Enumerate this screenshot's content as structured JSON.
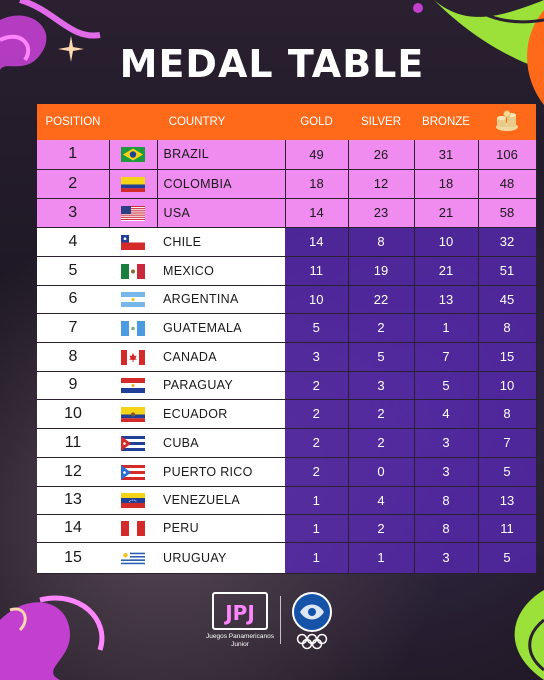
{
  "title": "MEDAL TABLE",
  "headers": {
    "position": "POSITION",
    "country": "COUNTRY",
    "gold": "GOLD",
    "silver": "SILVER",
    "bronze": "BRONZE",
    "total_icon": "medals-stack-icon"
  },
  "rows": [
    {
      "position": "1",
      "country": "BRAZIL",
      "flag": "brazil-flag",
      "gold": "49",
      "silver": "26",
      "bronze": "31",
      "total": "106"
    },
    {
      "position": "2",
      "country": "COLOMBIA",
      "flag": "colombia-flag",
      "gold": "18",
      "silver": "12",
      "bronze": "18",
      "total": "48"
    },
    {
      "position": "3",
      "country": "USA",
      "flag": "usa-flag",
      "gold": "14",
      "silver": "23",
      "bronze": "21",
      "total": "58"
    },
    {
      "position": "4",
      "country": "CHILE",
      "flag": "chile-flag",
      "gold": "14",
      "silver": "8",
      "bronze": "10",
      "total": "32"
    },
    {
      "position": "5",
      "country": "MEXICO",
      "flag": "mexico-flag",
      "gold": "11",
      "silver": "19",
      "bronze": "21",
      "total": "51"
    },
    {
      "position": "6",
      "country": "ARGENTINA",
      "flag": "argentina-flag",
      "gold": "10",
      "silver": "22",
      "bronze": "13",
      "total": "45"
    },
    {
      "position": "7",
      "country": "GUATEMALA",
      "flag": "guatemala-flag",
      "gold": "5",
      "silver": "2",
      "bronze": "1",
      "total": "8"
    },
    {
      "position": "8",
      "country": "CANADA",
      "flag": "canada-flag",
      "gold": "3",
      "silver": "5",
      "bronze": "7",
      "total": "15"
    },
    {
      "position": "9",
      "country": "PARAGUAY",
      "flag": "paraguay-flag",
      "gold": "2",
      "silver": "3",
      "bronze": "5",
      "total": "10"
    },
    {
      "position": "10",
      "country": "ECUADOR",
      "flag": "ecuador-flag",
      "gold": "2",
      "silver": "2",
      "bronze": "4",
      "total": "8"
    },
    {
      "position": "11",
      "country": "CUBA",
      "flag": "cuba-flag",
      "gold": "2",
      "silver": "2",
      "bronze": "3",
      "total": "7"
    },
    {
      "position": "12",
      "country": "PUERTO RICO",
      "flag": "puerto-rico-flag",
      "gold": "2",
      "silver": "0",
      "bronze": "3",
      "total": "5"
    },
    {
      "position": "13",
      "country": "VENEZUELA",
      "flag": "venezuela-flag",
      "gold": "1",
      "silver": "4",
      "bronze": "8",
      "total": "13"
    },
    {
      "position": "14",
      "country": "PERU",
      "flag": "peru-flag",
      "gold": "1",
      "silver": "2",
      "bronze": "8",
      "total": "11"
    },
    {
      "position": "15",
      "country": "URUGUAY",
      "flag": "uruguay-flag",
      "gold": "1",
      "silver": "1",
      "bronze": "3",
      "total": "5"
    }
  ],
  "footer": {
    "logo_mark": "JPJ",
    "logo_caption_line1": "Juegos Panamericanos",
    "logo_caption_line2": "Junior",
    "panam_logo": "panam-sports-logo"
  },
  "colors": {
    "header_orange": "#ff6a1a",
    "top3_pink": "#f08cf0",
    "purple_overlay": "#5c28be"
  }
}
